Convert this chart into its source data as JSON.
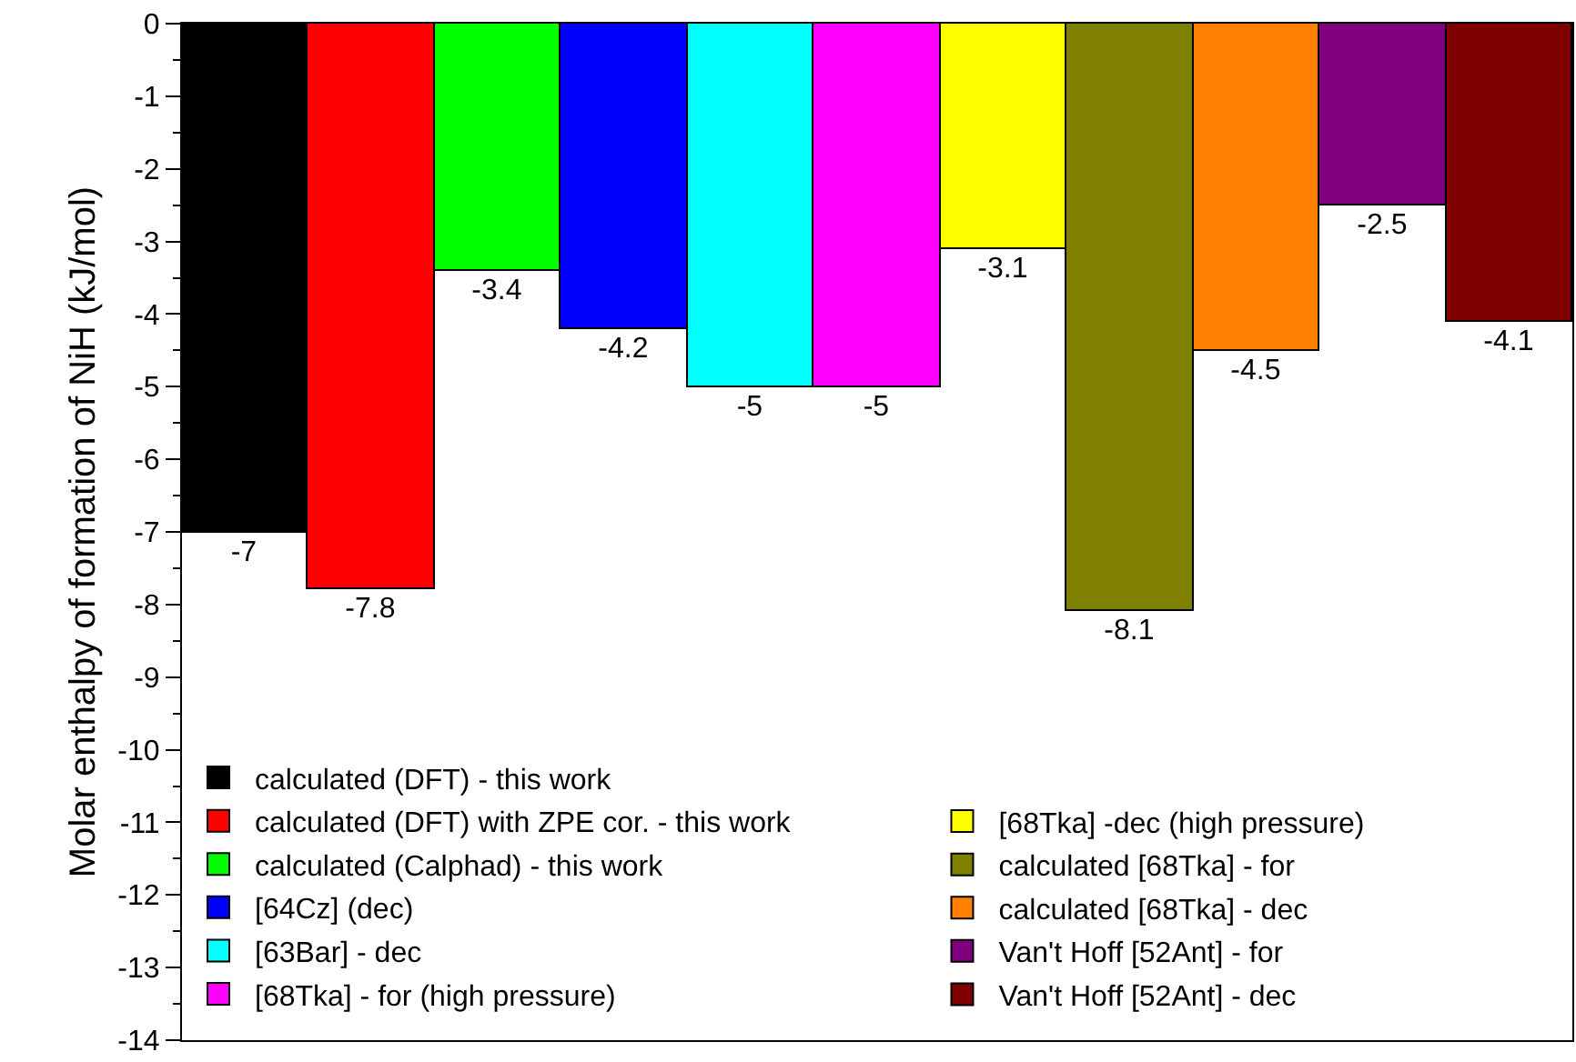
{
  "chart_data": {
    "type": "bar",
    "ylabel": "Molar enthalpy of formation of NiH (kJ/mol)",
    "categories": [
      null,
      null,
      null,
      null,
      null,
      null,
      null,
      null,
      null,
      null,
      null
    ],
    "series": [
      {
        "name": "calculated (DFT) - this work",
        "color": "#000000",
        "values": [
          -7,
          null,
          null,
          null,
          null,
          null,
          null,
          null,
          null,
          null,
          null
        ]
      },
      {
        "name": "calculated (DFT) with ZPE cor. - this work",
        "color": "#ff0000",
        "values": [
          null,
          -7.8,
          null,
          null,
          null,
          null,
          null,
          null,
          null,
          null,
          null
        ]
      },
      {
        "name": "calculated (Calphad) - this work",
        "color": "#00ff00",
        "values": [
          null,
          null,
          -3.4,
          null,
          null,
          null,
          null,
          null,
          null,
          null,
          null
        ]
      },
      {
        "name": "[64Cz] (dec)",
        "color": "#0000ff",
        "values": [
          null,
          null,
          null,
          -4.2,
          null,
          null,
          null,
          null,
          null,
          null,
          null
        ]
      },
      {
        "name": "[63Bar] - dec",
        "color": "#00ffff",
        "values": [
          null,
          null,
          null,
          null,
          -5,
          null,
          null,
          null,
          null,
          null,
          null
        ]
      },
      {
        "name": "[68Tka] - for (high pressure)",
        "color": "#ff00ff",
        "values": [
          null,
          null,
          null,
          null,
          null,
          -5,
          null,
          null,
          null,
          null,
          null
        ]
      },
      {
        "name": "[68Tka] -dec (high pressure)",
        "color": "#ffff00",
        "values": [
          null,
          null,
          null,
          null,
          null,
          null,
          -3.1,
          null,
          null,
          null,
          null
        ]
      },
      {
        "name": "calculated [68Tka] - for",
        "color": "#808000",
        "values": [
          null,
          null,
          null,
          null,
          null,
          null,
          null,
          -8.1,
          null,
          null,
          null
        ]
      },
      {
        "name": "calculated [68Tka] - dec",
        "color": "#ff8000",
        "values": [
          null,
          null,
          null,
          null,
          null,
          null,
          null,
          null,
          -4.5,
          null,
          null
        ]
      },
      {
        "name": "Van't Hoff [52Ant] - for",
        "color": "#800080",
        "values": [
          null,
          null,
          null,
          null,
          null,
          null,
          null,
          null,
          null,
          -2.5,
          null
        ]
      },
      {
        "name": "Van't Hoff [52Ant] - dec",
        "color": "#800000",
        "values": [
          null,
          null,
          null,
          null,
          null,
          null,
          null,
          null,
          null,
          null,
          -4.1
        ]
      }
    ],
    "ylim": [
      -14,
      0
    ],
    "yticks": [
      0,
      -1,
      -2,
      -3,
      -4,
      -5,
      -6,
      -7,
      -8,
      -9,
      -10,
      -11,
      -12,
      -13,
      -14
    ],
    "data_labels": true,
    "grid": false,
    "legend": "bottom",
    "tick_labels": "y"
  }
}
